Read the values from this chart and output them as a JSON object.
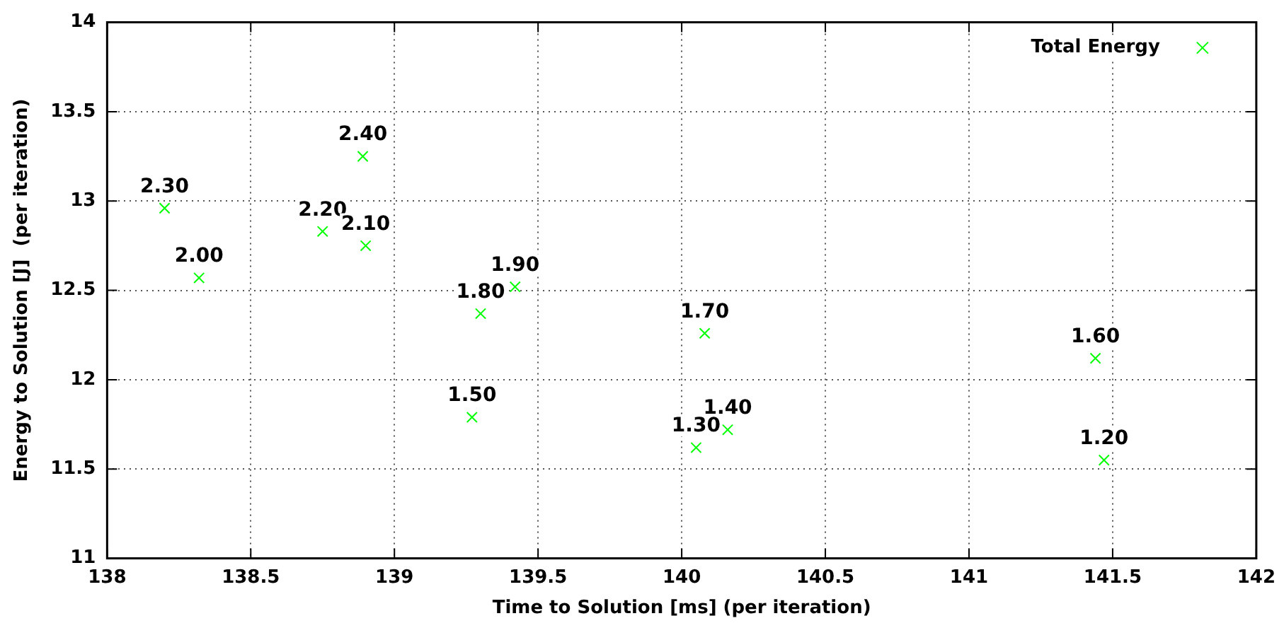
{
  "chart_data": {
    "type": "scatter",
    "xlabel": "Time to Solution [ms] (per iteration)",
    "ylabel": "Energy to Solution [J]  (per iteration)",
    "x": [
      138.2,
      138.32,
      138.89,
      138.75,
      138.9,
      139.3,
      139.42,
      140.08,
      141.44,
      140.16,
      140.05,
      141.47,
      139.27
    ],
    "series": [
      {
        "name": "Total Energy",
        "color": "#00ff00",
        "values": [
          12.96,
          12.57,
          13.25,
          12.83,
          12.75,
          12.37,
          12.52,
          12.26,
          12.12,
          11.72,
          11.62,
          11.55,
          11.79
        ]
      }
    ],
    "xlim": [
      138,
      142
    ],
    "xticks": [
      138,
      138.5,
      139,
      139.5,
      140,
      140.5,
      141,
      141.5,
      142
    ],
    "ylim": [
      11,
      14
    ],
    "yticks": [
      11,
      11.5,
      12,
      12.5,
      13,
      13.5,
      14
    ],
    "grid": true,
    "legend": "top right",
    "marker": "cross",
    "annotations": [
      {
        "text": "2.30",
        "x": 138.2,
        "y": 12.96
      },
      {
        "text": "2.00",
        "x": 138.32,
        "y": 12.57
      },
      {
        "text": "2.40",
        "x": 138.89,
        "y": 13.25
      },
      {
        "text": "2.20",
        "x": 138.75,
        "y": 12.83
      },
      {
        "text": "2.10",
        "x": 138.9,
        "y": 12.75
      },
      {
        "text": "1.80",
        "x": 139.3,
        "y": 12.37
      },
      {
        "text": "1.90",
        "x": 139.42,
        "y": 12.52
      },
      {
        "text": "1.70",
        "x": 140.08,
        "y": 12.26
      },
      {
        "text": "1.60",
        "x": 141.44,
        "y": 12.12
      },
      {
        "text": "1.40",
        "x": 140.16,
        "y": 11.72
      },
      {
        "text": "1.30",
        "x": 140.05,
        "y": 11.62
      },
      {
        "text": "1.20",
        "x": 141.47,
        "y": 11.55
      },
      {
        "text": "1.50",
        "x": 139.27,
        "y": 11.79
      }
    ]
  }
}
